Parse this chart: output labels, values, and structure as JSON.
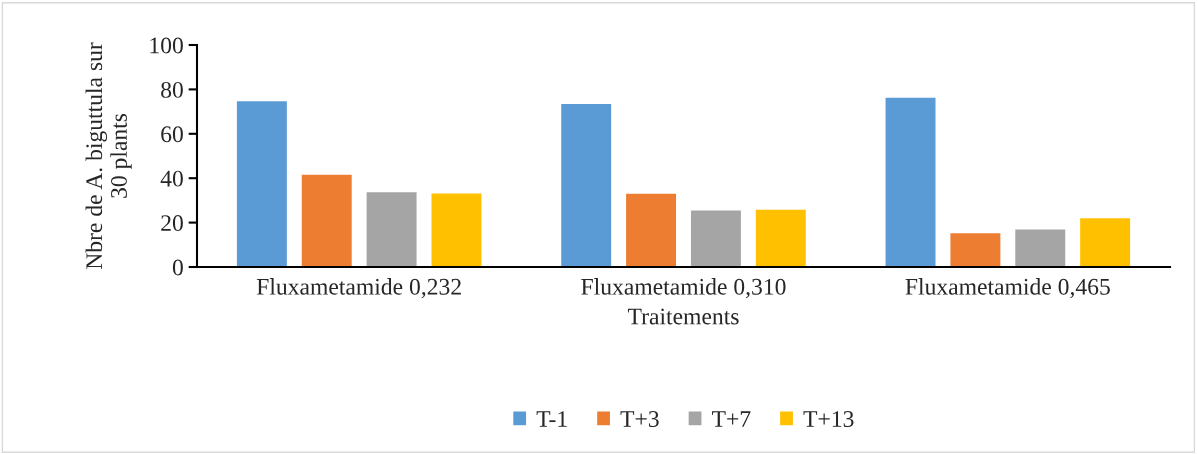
{
  "chart_data": {
    "type": "bar",
    "xlabel": "Traitements",
    "ylabel": "Nbre de A. biguttula sur\n30 plants",
    "categories": [
      "Fluxametamide 0,232",
      "Fluxametamide 0,310",
      "Fluxametamide 0,465"
    ],
    "series": [
      {
        "name": "T-1",
        "color": "#5b9bd5",
        "values": [
          74.7,
          73.4,
          76.2
        ]
      },
      {
        "name": "T+3",
        "color": "#ed7d31",
        "values": [
          41.5,
          33.0,
          15.2
        ]
      },
      {
        "name": "T+7",
        "color": "#a5a5a5",
        "values": [
          33.7,
          25.5,
          16.9
        ]
      },
      {
        "name": "T+13",
        "color": "#ffc000",
        "values": [
          33.1,
          25.8,
          22.0
        ]
      }
    ],
    "ylim": [
      0,
      100
    ],
    "yticks": [
      0,
      20,
      40,
      60,
      80,
      100
    ],
    "grid": false,
    "legend": "bottom"
  }
}
